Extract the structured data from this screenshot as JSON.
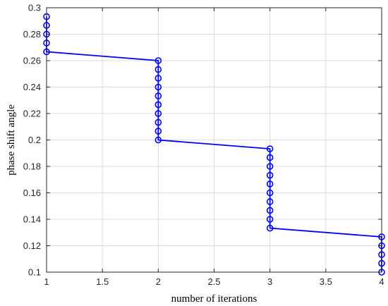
{
  "chart_data": {
    "type": "line",
    "title": "",
    "xlabel": "number of iterations",
    "ylabel": "phase shift angle",
    "xlim": [
      1,
      4
    ],
    "ylim": [
      0.1,
      0.3
    ],
    "grid": true,
    "x_ticks": [
      {
        "value": 1,
        "label": "1"
      },
      {
        "value": 1.5,
        "label": "1.5"
      },
      {
        "value": 2,
        "label": "2"
      },
      {
        "value": 2.5,
        "label": "2.5"
      },
      {
        "value": 3,
        "label": "3"
      },
      {
        "value": 3.5,
        "label": "3.5"
      },
      {
        "value": 4,
        "label": "4"
      }
    ],
    "y_ticks": [
      {
        "value": 0.1,
        "label": "0.1"
      },
      {
        "value": 0.12,
        "label": "0.12"
      },
      {
        "value": 0.14,
        "label": "0.14"
      },
      {
        "value": 0.16,
        "label": "0.16"
      },
      {
        "value": 0.18,
        "label": "0.18"
      },
      {
        "value": 0.2,
        "label": "0.2"
      },
      {
        "value": 0.22,
        "label": "0.22"
      },
      {
        "value": 0.24,
        "label": "0.24"
      },
      {
        "value": 0.26,
        "label": "0.26"
      },
      {
        "value": 0.28,
        "label": "0.28"
      },
      {
        "value": 0.3,
        "label": "0.3"
      }
    ],
    "series": [
      {
        "color": "#0000ff",
        "marker": "circle",
        "points": [
          [
            1,
            0.2933
          ],
          [
            1,
            0.2867
          ],
          [
            1,
            0.28
          ],
          [
            1,
            0.2733
          ],
          [
            1,
            0.2667
          ],
          [
            2,
            0.26
          ],
          [
            2,
            0.2533
          ],
          [
            2,
            0.2467
          ],
          [
            2,
            0.24
          ],
          [
            2,
            0.2333
          ],
          [
            2,
            0.2267
          ],
          [
            2,
            0.22
          ],
          [
            2,
            0.2133
          ],
          [
            2,
            0.2067
          ],
          [
            2,
            0.2
          ],
          [
            3,
            0.1933
          ],
          [
            3,
            0.1867
          ],
          [
            3,
            0.18
          ],
          [
            3,
            0.1733
          ],
          [
            3,
            0.1667
          ],
          [
            3,
            0.16
          ],
          [
            3,
            0.1533
          ],
          [
            3,
            0.1467
          ],
          [
            3,
            0.14
          ],
          [
            3,
            0.1333
          ],
          [
            4,
            0.1267
          ],
          [
            4,
            0.12
          ],
          [
            4,
            0.1133
          ],
          [
            4,
            0.1067
          ],
          [
            4,
            0.1
          ]
        ]
      }
    ]
  }
}
